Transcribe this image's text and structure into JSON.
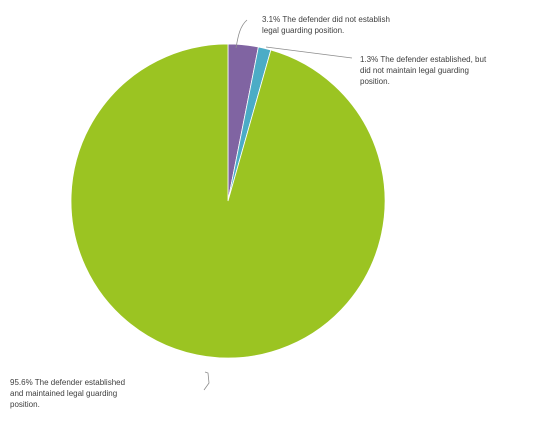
{
  "chart_data": {
    "type": "pie",
    "title": "",
    "legend": "none",
    "slices": [
      {
        "value": 3.1,
        "label_lines": [
          "3.1% The defender did not establish",
          "legal guarding position."
        ],
        "color": "#8064a2"
      },
      {
        "value": 1.3,
        "label_lines": [
          "1.3% The defender established, but",
          "did not maintain legal guarding",
          "position."
        ],
        "color": "#4bacc6"
      },
      {
        "value": 95.6,
        "label_lines": [
          "95.6% The defender established",
          "and maintained legal guarding",
          "position."
        ],
        "color": "#9bc422"
      }
    ],
    "start_angle": "12 o'clock",
    "direction": "clockwise"
  }
}
